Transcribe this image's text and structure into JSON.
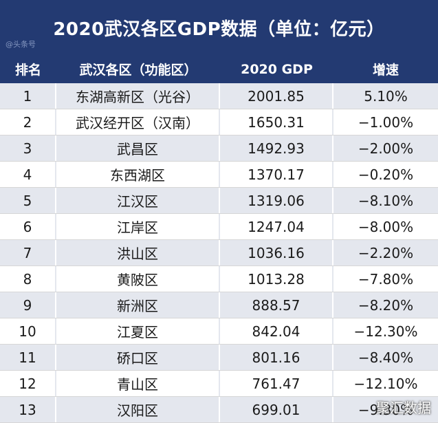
{
  "title": "2020武汉各区GDP数据（单位：亿元）",
  "watermark_top": "@头条号",
  "watermark_bottom": "聚汇数据",
  "headers": [
    "排名",
    "武汉各区（功能区）",
    "2020 GDP",
    "增速"
  ],
  "rows": [
    {
      "rank": "1",
      "district": "东湖高新区（光谷）",
      "gdp": "2001.85",
      "growth": "5.10%"
    },
    {
      "rank": "2",
      "district": "武汉经开区（汉南）",
      "gdp": "1650.31",
      "growth": "−1.00%"
    },
    {
      "rank": "3",
      "district": "武昌区",
      "gdp": "1492.93",
      "growth": "−2.00%"
    },
    {
      "rank": "4",
      "district": "东西湖区",
      "gdp": "1370.17",
      "growth": "−0.20%"
    },
    {
      "rank": "5",
      "district": "江汉区",
      "gdp": "1319.06",
      "growth": "−8.10%"
    },
    {
      "rank": "6",
      "district": "江岸区",
      "gdp": "1247.04",
      "growth": "−8.00%"
    },
    {
      "rank": "7",
      "district": "洪山区",
      "gdp": "1036.16",
      "growth": "−2.20%"
    },
    {
      "rank": "8",
      "district": "黄陂区",
      "gdp": "1013.28",
      "growth": "−7.80%"
    },
    {
      "rank": "9",
      "district": "新洲区",
      "gdp": "888.57",
      "growth": "−8.20%"
    },
    {
      "rank": "10",
      "district": "江夏区",
      "gdp": "842.04",
      "growth": "−12.30%"
    },
    {
      "rank": "11",
      "district": "硚口区",
      "gdp": "801.16",
      "growth": "−8.40%"
    },
    {
      "rank": "12",
      "district": "青山区",
      "gdp": "761.47",
      "growth": "−12.10%"
    },
    {
      "rank": "13",
      "district": "汉阳区",
      "gdp": "699.01",
      "growth": "−9.30%"
    }
  ],
  "colors": {
    "header_bg": "#233a72",
    "row_alt": "#e4e7ee"
  }
}
